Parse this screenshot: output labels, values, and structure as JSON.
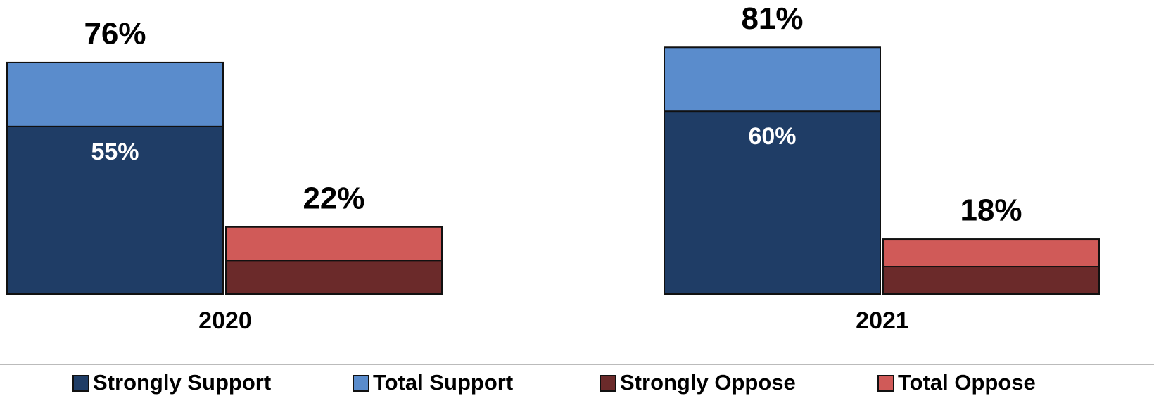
{
  "chart_data": {
    "type": "bar",
    "barmode": "overlay",
    "categories": [
      "2020",
      "2021"
    ],
    "series": [
      {
        "name": "Strongly Support",
        "color": "#1f3d66",
        "values": [
          55,
          60
        ],
        "value_labels": [
          "55%",
          "60%"
        ]
      },
      {
        "name": "Total Support",
        "color": "#5a8ccc",
        "values": [
          76,
          81
        ],
        "value_labels": [
          "76%",
          "81%"
        ]
      },
      {
        "name": "Strongly Oppose",
        "color": "#6b2a2a",
        "values": [
          11,
          9
        ]
      },
      {
        "name": "Total Oppose",
        "color": "#d05a58",
        "values": [
          22,
          18
        ],
        "value_labels": [
          "22%",
          "18%"
        ]
      }
    ]
  }
}
